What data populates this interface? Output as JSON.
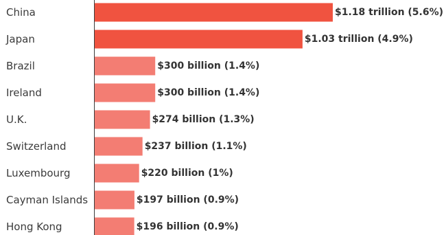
{
  "chart_data": {
    "type": "bar",
    "orientation": "horizontal",
    "title": "",
    "xlabel": "",
    "ylabel": "",
    "grid": false,
    "legend": "none",
    "unit": "USD billion",
    "xlim": [
      0,
      1180
    ],
    "categories": [
      "China",
      "Japan",
      "Brazil",
      "Ireland",
      "U.K.",
      "Switzerland",
      "Luxembourg",
      "Cayman Islands",
      "Hong Kong"
    ],
    "values": [
      1180,
      1030,
      300,
      300,
      274,
      237,
      220,
      197,
      196
    ],
    "data_labels": [
      "$1.18 trillion (5.6%)",
      "$1.03 trillion (4.9%)",
      "$300 billion (1.4%)",
      "$300 billion (1.4%)",
      "$274 billion (1.3%)",
      "$237 billion (1.1%)",
      "$220 billion (1%)",
      "$197 billion (0.9%)",
      "$196 billion (0.9%)"
    ],
    "colors": {
      "top": "#f05340",
      "rest": "#f37d73",
      "axis": "#3a3a3a"
    },
    "highlighted_count": 2
  }
}
